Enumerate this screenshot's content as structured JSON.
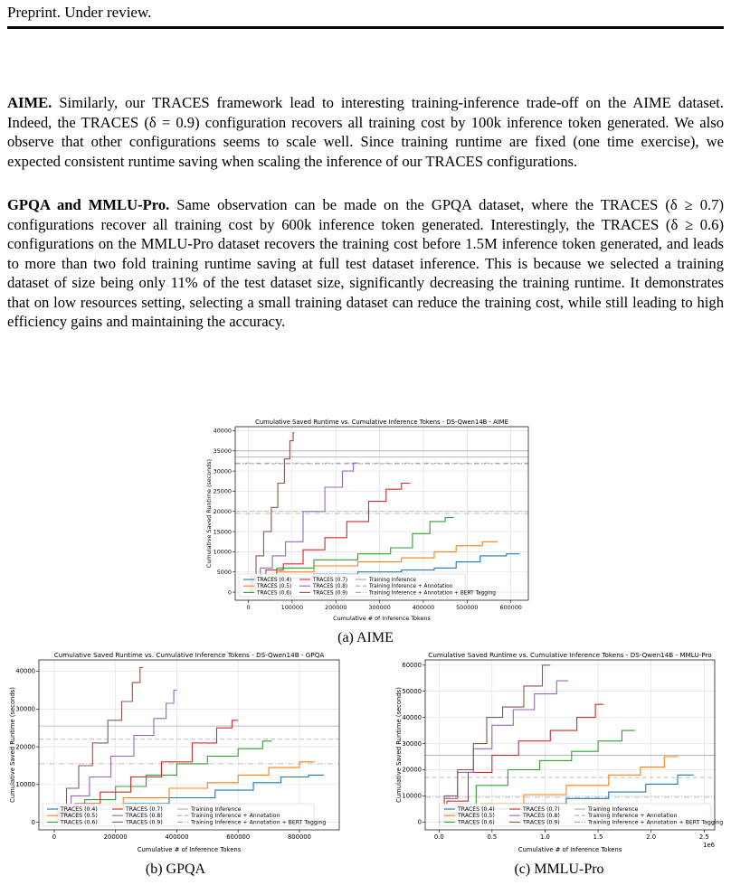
{
  "header": {
    "text": "Preprint. Under review."
  },
  "paragraphs": {
    "aime": {
      "lead": "AIME.",
      "body": " Similarly, our TRACES framework lead to interesting training-inference trade-off on the AIME dataset. Indeed, the TRACES (δ = 0.9) configuration recovers all training cost by 100k inference token generated. We also observe that other configurations seems to scale well. Since training runtime are fixed (one time exercise), we expected consistent runtime saving when scaling the inference of our TRACES configurations."
    },
    "gpqa": {
      "lead": "GPQA and MMLU-Pro.",
      "body": " Same observation can be made on the GPQA dataset, where the TRACES (δ ≥ 0.7) configurations recover all training cost by 600k inference token generated. Interestingly, the TRACES (δ ≥ 0.6) configurations on the MMLU-Pro dataset recovers the training cost before 1.5M inference token generated, and leads to more than two fold training runtime saving at full test dataset inference. This is because we selected a training dataset of size being only 11% of the test dataset size, significantly decreasing the training runtime. It demonstrates that on low resources setting, selecting a small training dataset can reduce the training cost, while still leading to high efficiency gains and maintaining the accuracy."
    }
  },
  "captions": {
    "aime": "(a) AIME",
    "gpqa": "(b) GPQA",
    "mmlu": "(c) MMLU-Pro"
  },
  "colors": {
    "TRACES (0.4)": "#1f77b4",
    "TRACES (0.5)": "#ff7f0e",
    "TRACES (0.6)": "#2ca02c",
    "TRACES (0.7)": "#d62728",
    "TRACES (0.8)": "#9467bd",
    "TRACES (0.9)": "#8c564b"
  },
  "chart_data": [
    {
      "type": "line",
      "title": "Cumulative Saved Runtime vs. Cumulative Inference Tokens - DS-Qwen14B - AIME",
      "xlabel": "Cumulative # of Inference Tokens",
      "ylabel": "Cumulative Saved Runtime (seconds)",
      "xlim": [
        -30000,
        640000
      ],
      "ylim": [
        -2000,
        41000
      ],
      "xticks": [
        0,
        100000,
        200000,
        300000,
        400000,
        500000,
        600000
      ],
      "xtick_labels": [
        "0",
        "100000",
        "200000",
        "300000",
        "400000",
        "500000",
        "600000"
      ],
      "yticks": [
        0,
        5000,
        10000,
        15000,
        20000,
        25000,
        30000,
        35000,
        40000
      ],
      "ytick_labels": [
        "0",
        "5000",
        "10000",
        "15000",
        "20000",
        "25000",
        "30000",
        "35000",
        "40000"
      ],
      "grid": true,
      "legend_placement": "lower-left",
      "legend": [
        "TRACES (0.4)",
        "TRACES (0.5)",
        "TRACES (0.6)",
        "TRACES (0.7)",
        "TRACES (0.8)",
        "TRACES (0.9)",
        "Training Inference",
        "Training Inference + Annotation",
        "Training Inference + Annotation + BERT Tagging"
      ],
      "hlines": [
        {
          "name": "Training Inference",
          "styles": [
            "solid",
            "dash",
            "dashdot",
            "solid",
            "dash",
            "dashdot"
          ],
          "values": [
            33500,
            31800,
            32000,
            35000,
            20000,
            19500
          ]
        }
      ],
      "series": [
        {
          "name": "TRACES (0.4)",
          "x": [
            0,
            30000,
            100000,
            200000,
            300000,
            400000,
            450000,
            500000,
            560000,
            620000
          ],
          "y": [
            0,
            2000,
            3500,
            4500,
            5000,
            5500,
            6000,
            7500,
            9000,
            9500
          ]
        },
        {
          "name": "TRACES (0.5)",
          "x": [
            0,
            30000,
            100000,
            200000,
            300000,
            400000,
            450000,
            500000,
            570000
          ],
          "y": [
            0,
            3000,
            5000,
            6500,
            7500,
            8500,
            10000,
            11500,
            12500
          ]
        },
        {
          "name": "TRACES (0.6)",
          "x": [
            0,
            30000,
            100000,
            200000,
            300000,
            350000,
            400000,
            430000,
            470000
          ],
          "y": [
            0,
            3500,
            6000,
            8000,
            9500,
            11000,
            14500,
            17500,
            18500
          ]
        },
        {
          "name": "TRACES (0.7)",
          "x": [
            0,
            20000,
            60000,
            100000,
            150000,
            200000,
            250000,
            300000,
            330000,
            370000
          ],
          "y": [
            0,
            3000,
            5500,
            7000,
            10500,
            13500,
            17500,
            22500,
            25500,
            27000
          ]
        },
        {
          "name": "TRACES (0.8)",
          "x": [
            0,
            15000,
            40000,
            70000,
            100000,
            150000,
            200000,
            230000,
            250000
          ],
          "y": [
            0,
            3500,
            6000,
            9000,
            12500,
            20000,
            26000,
            30000,
            32000
          ]
        },
        {
          "name": "TRACES (0.9)",
          "x": [
            0,
            10000,
            25000,
            45000,
            60000,
            75000,
            90000,
            100000,
            105000
          ],
          "y": [
            0,
            4000,
            9000,
            15000,
            21000,
            27000,
            33000,
            37500,
            39500
          ]
        }
      ]
    },
    {
      "type": "line",
      "title": "Cumulative Saved Runtime vs. Cumulative Inference Tokens - DS-Qwen14B - GPQA",
      "xlabel": "Cumulative # of Inference Tokens",
      "ylabel": "Cumulative Saved Runtime (seconds)",
      "xlim": [
        -50000,
        930000
      ],
      "ylim": [
        -2000,
        43000
      ],
      "xticks": [
        0,
        200000,
        400000,
        600000,
        800000
      ],
      "xtick_labels": [
        "0",
        "200000",
        "400000",
        "600000",
        "800000"
      ],
      "yticks": [
        0,
        10000,
        20000,
        30000,
        40000
      ],
      "ytick_labels": [
        "0",
        "10000",
        "20000",
        "30000",
        "40000"
      ],
      "grid": true,
      "legend_placement": "lower-left",
      "legend": [
        "TRACES (0.4)",
        "TRACES (0.5)",
        "TRACES (0.6)",
        "TRACES (0.7)",
        "TRACES (0.8)",
        "TRACES (0.9)",
        "Training Inference",
        "Training Inference + Annotation",
        "Training Inference + Annotation + BERT Tagging"
      ],
      "hlines": [
        {
          "name": "Training Inference",
          "styles": [
            "solid",
            "dash",
            "dashdot"
          ],
          "values": [
            25500,
            22000,
            15500
          ]
        }
      ],
      "series": [
        {
          "name": "TRACES (0.4)",
          "x": [
            0,
            50000,
            150000,
            300000,
            450000,
            600000,
            700000,
            780000,
            880000
          ],
          "y": [
            0,
            2000,
            3500,
            5000,
            6500,
            8500,
            10500,
            12000,
            12500
          ]
        },
        {
          "name": "TRACES (0.5)",
          "x": [
            0,
            50000,
            150000,
            300000,
            450000,
            550000,
            650000,
            750000,
            850000
          ],
          "y": [
            0,
            2500,
            4500,
            6500,
            9000,
            10500,
            12500,
            14500,
            16000
          ]
        },
        {
          "name": "TRACES (0.6)",
          "x": [
            0,
            50000,
            150000,
            250000,
            350000,
            450000,
            550000,
            650000,
            710000
          ],
          "y": [
            0,
            3000,
            6000,
            9500,
            12500,
            15500,
            17500,
            19500,
            21500
          ]
        },
        {
          "name": "TRACES (0.7)",
          "x": [
            0,
            40000,
            100000,
            200000,
            300000,
            400000,
            500000,
            560000,
            600000
          ],
          "y": [
            0,
            3000,
            5000,
            8000,
            12000,
            16000,
            21000,
            25000,
            27000
          ]
        },
        {
          "name": "TRACES (0.8)",
          "x": [
            0,
            30000,
            80000,
            150000,
            220000,
            300000,
            350000,
            380000,
            400000
          ],
          "y": [
            0,
            3500,
            7000,
            12000,
            17500,
            23000,
            27500,
            31500,
            35000
          ]
        },
        {
          "name": "TRACES (0.9)",
          "x": [
            0,
            20000,
            60000,
            100000,
            150000,
            200000,
            240000,
            270000,
            290000
          ],
          "y": [
            0,
            4000,
            9000,
            15000,
            21000,
            27000,
            32000,
            37000,
            41000
          ]
        }
      ]
    },
    {
      "type": "line",
      "title": "Cumulative Saved Runtime vs. Cumulative Inference Tokens - DS-Qwen14B - MMLU-Pro",
      "xlabel": "Cumulative # of Inference Tokens",
      "ylabel": "Cumulative Saved Runtime (seconds)",
      "x_scale_label": "1e6",
      "xlim": [
        -0.13,
        2.6
      ],
      "ylim": [
        -3000,
        62000
      ],
      "xticks": [
        0,
        0.5,
        1.0,
        1.5,
        2.0,
        2.5
      ],
      "xtick_labels": [
        "0.0",
        "0.5",
        "1.0",
        "1.5",
        "2.0",
        "2.5"
      ],
      "yticks": [
        0,
        10000,
        20000,
        30000,
        40000,
        50000,
        60000
      ],
      "ytick_labels": [
        "0",
        "10000",
        "20000",
        "30000",
        "40000",
        "50000",
        "60000"
      ],
      "grid": true,
      "legend_placement": "lower-right",
      "legend": [
        "TRACES (0.4)",
        "TRACES (0.5)",
        "TRACES (0.6)",
        "TRACES (0.7)",
        "TRACES (0.8)",
        "TRACES (0.9)",
        "Training Inference",
        "Training Inference + Annotation",
        "Training Inference + Annotation + BERT Tagging"
      ],
      "hlines": [
        {
          "name": "Training Inference",
          "styles": [
            "solid",
            "dash",
            "dashdot"
          ],
          "values": [
            25500,
            17000,
            9500
          ]
        }
      ],
      "series": [
        {
          "name": "TRACES (0.4)",
          "x": [
            0,
            0.2,
            0.6,
            1.0,
            1.4,
            1.8,
            2.1,
            2.4
          ],
          "y": [
            0,
            3000,
            5000,
            7000,
            9000,
            11500,
            14500,
            18000
          ]
        },
        {
          "name": "TRACES (0.5)",
          "x": [
            0,
            0.2,
            0.6,
            1.0,
            1.4,
            1.8,
            2.0,
            2.25
          ],
          "y": [
            0,
            3500,
            7000,
            10500,
            14000,
            18000,
            21000,
            25000
          ]
        },
        {
          "name": "TRACES (0.6)",
          "x": [
            0,
            0.2,
            0.5,
            0.8,
            1.1,
            1.4,
            1.6,
            1.85
          ],
          "y": [
            0,
            6000,
            14000,
            20000,
            23500,
            27000,
            31000,
            35000
          ]
        },
        {
          "name": "TRACES (0.7)",
          "x": [
            0,
            0.15,
            0.4,
            0.6,
            0.9,
            1.2,
            1.4,
            1.55
          ],
          "y": [
            0,
            8000,
            19000,
            25500,
            31000,
            35000,
            40000,
            45000
          ]
        },
        {
          "name": "TRACES (0.8)",
          "x": [
            0,
            0.1,
            0.25,
            0.4,
            0.6,
            0.8,
            1.0,
            1.22
          ],
          "y": [
            0,
            9000,
            19000,
            28000,
            37000,
            43000,
            49000,
            54000
          ]
        },
        {
          "name": "TRACES (0.9)",
          "x": [
            0,
            0.1,
            0.25,
            0.4,
            0.5,
            0.7,
            0.9,
            1.05
          ],
          "y": [
            0,
            10000,
            20000,
            30000,
            40000,
            44000,
            52000,
            60000
          ]
        }
      ]
    }
  ]
}
